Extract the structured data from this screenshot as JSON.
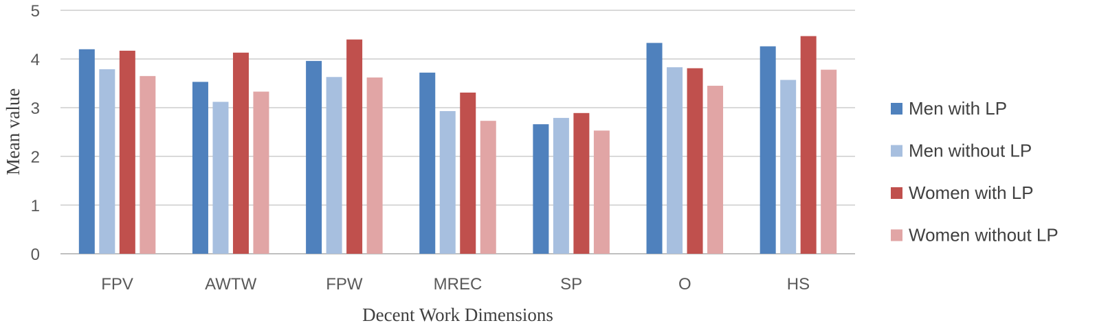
{
  "chart_data": {
    "type": "bar",
    "title": "",
    "xlabel": "Decent Work Dimensions",
    "ylabel": "Mean value",
    "categories": [
      "FPV",
      "AWTW",
      "FPW",
      "MREC",
      "SP",
      "O",
      "HS"
    ],
    "ylim": [
      0,
      5
    ],
    "yticks": [
      "0",
      "1",
      "2",
      "3",
      "4",
      "5"
    ],
    "grid": true,
    "legend_position": "right",
    "series": [
      {
        "name": "Men with LP",
        "color": "#4f81bd",
        "values": [
          4.2,
          3.53,
          3.96,
          3.72,
          2.66,
          4.33,
          4.26
        ]
      },
      {
        "name": "Men without LP",
        "color": "#a7bfdf",
        "values": [
          3.79,
          3.12,
          3.63,
          2.93,
          2.79,
          3.83,
          3.57
        ]
      },
      {
        "name": "Women with LP",
        "color": "#c0504d",
        "values": [
          4.17,
          4.13,
          4.4,
          3.31,
          2.89,
          3.81,
          4.47
        ]
      },
      {
        "name": "Women without LP",
        "color": "#e1a5a5",
        "values": [
          3.65,
          3.33,
          3.62,
          2.73,
          2.53,
          3.45,
          3.78
        ]
      }
    ]
  }
}
